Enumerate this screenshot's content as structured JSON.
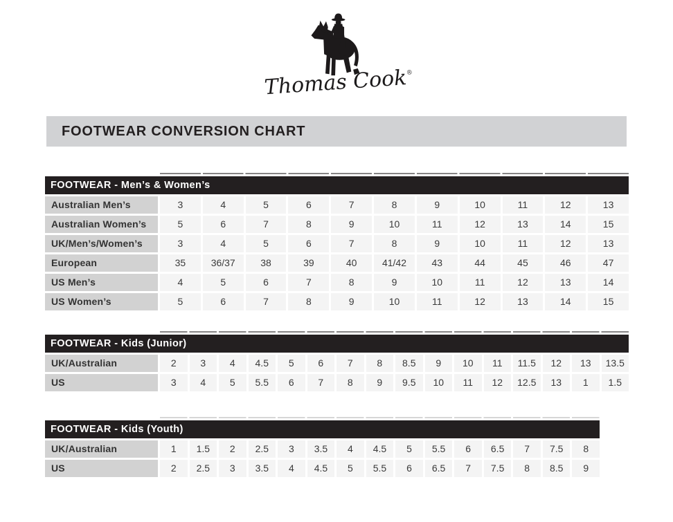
{
  "brand": {
    "logo_icon": "horse-rider-icon",
    "signature": "Thomas Cook",
    "registered_mark": "®"
  },
  "banner": {
    "title": "FOOTWEAR CONVERSION CHART"
  },
  "colors": {
    "header_black": "#231f20",
    "banner_gray": "#d1d2d4",
    "label_gray": "#d2d2d2",
    "cell_gray": "#f4f4f4",
    "text_dark": "#3a3a3a"
  },
  "tables": [
    {
      "title": "FOOTWEAR - Men’s & Women’s",
      "rows": [
        {
          "label": "Australian Men’s",
          "values": [
            "3",
            "4",
            "5",
            "6",
            "7",
            "8",
            "9",
            "10",
            "11",
            "12",
            "13"
          ]
        },
        {
          "label": "Australian Women’s",
          "values": [
            "5",
            "6",
            "7",
            "8",
            "9",
            "10",
            "11",
            "12",
            "13",
            "14",
            "15"
          ]
        },
        {
          "label": "UK/Men’s/Women’s",
          "values": [
            "3",
            "4",
            "5",
            "6",
            "7",
            "8",
            "9",
            "10",
            "11",
            "12",
            "13"
          ]
        },
        {
          "label": "European",
          "values": [
            "35",
            "36/37",
            "38",
            "39",
            "40",
            "41/42",
            "43",
            "44",
            "45",
            "46",
            "47"
          ]
        },
        {
          "label": "US Men’s",
          "values": [
            "4",
            "5",
            "6",
            "7",
            "8",
            "9",
            "10",
            "11",
            "12",
            "13",
            "14"
          ]
        },
        {
          "label": "US Women’s",
          "values": [
            "5",
            "6",
            "7",
            "8",
            "9",
            "10",
            "11",
            "12",
            "13",
            "14",
            "15"
          ]
        }
      ]
    },
    {
      "title": "FOOTWEAR - Kids (Junior)",
      "rows": [
        {
          "label": "UK/Australian",
          "values": [
            "2",
            "3",
            "4",
            "4.5",
            "5",
            "6",
            "7",
            "8",
            "8.5",
            "9",
            "10",
            "11",
            "11.5",
            "12",
            "13",
            "13.5"
          ]
        },
        {
          "label": "US",
          "values": [
            "3",
            "4",
            "5",
            "5.5",
            "6",
            "7",
            "8",
            "9",
            "9.5",
            "10",
            "11",
            "12",
            "12.5",
            "13",
            "1",
            "1.5"
          ]
        }
      ]
    },
    {
      "title": "FOOTWEAR - Kids (Youth)",
      "rows": [
        {
          "label": "UK/Australian",
          "values": [
            "1",
            "1.5",
            "2",
            "2.5",
            "3",
            "3.5",
            "4",
            "4.5",
            "5",
            "5.5",
            "6",
            "6.5",
            "7",
            "7.5",
            "8"
          ]
        },
        {
          "label": "US",
          "values": [
            "2",
            "2.5",
            "3",
            "3.5",
            "4",
            "4.5",
            "5",
            "5.5",
            "6",
            "6.5",
            "7",
            "7.5",
            "8",
            "8.5",
            "9"
          ]
        }
      ]
    }
  ]
}
